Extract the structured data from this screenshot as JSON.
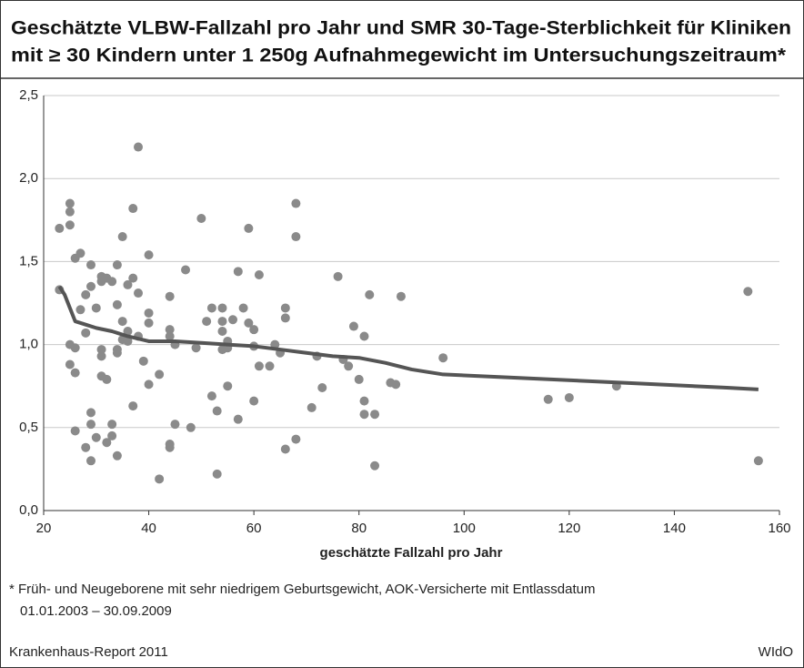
{
  "chart_data": {
    "type": "scatter",
    "title": [
      "Geschätzte VLBW-Fallzahl pro Jahr und SMR 30-Tage-Sterblichkeit für Kliniken",
      "mit ≥ 30 Kindern unter 1 250g Aufnahmegewicht im Untersuchungszeitraum*"
    ],
    "x_label": "geschätzte Fallzahl pro Jahr",
    "footnote": [
      "* Früh- und Neugeborene mit sehr niedrigem Geburtsgewicht, AOK-Versicherte mit Entlassdatum",
      "01.01.2003 – 30.09.2009"
    ],
    "source": "Krankenhaus-Report 2011",
    "publisher": "WIdO",
    "xlim": [
      20,
      160
    ],
    "xticks": [
      20,
      40,
      60,
      80,
      100,
      120,
      140,
      160
    ],
    "ylim": [
      0,
      2.5
    ],
    "yticks": [
      {
        "value": 0,
        "label": "0,0"
      },
      {
        "value": 0.5,
        "label": "0,5"
      },
      {
        "value": 1,
        "label": "1,0"
      },
      {
        "value": 1.5,
        "label": "1,5"
      },
      {
        "value": 2,
        "label": "2,0"
      },
      {
        "value": 2.5,
        "label": "2,5"
      }
    ],
    "grid": true,
    "color": "#8a8a8a",
    "trend_color": "#555555",
    "x": [
      23,
      23,
      25,
      25,
      25,
      26,
      27,
      25,
      26,
      25,
      26,
      26,
      27,
      28,
      28,
      28,
      29,
      29,
      29,
      29,
      29,
      30,
      30,
      31,
      31,
      31,
      31,
      31,
      32,
      32,
      32,
      33,
      33,
      33,
      34,
      34,
      34,
      34,
      34,
      35,
      35,
      35,
      36,
      36,
      36,
      37,
      37,
      37,
      38,
      38,
      38,
      39,
      40,
      40,
      40,
      40,
      42,
      42,
      44,
      44,
      44,
      44,
      44,
      45,
      45,
      47,
      48,
      49,
      50,
      51,
      52,
      52,
      53,
      53,
      54,
      54,
      54,
      54,
      55,
      55,
      55,
      56,
      57,
      57,
      58,
      59,
      59,
      60,
      60,
      60,
      61,
      61,
      63,
      64,
      65,
      66,
      66,
      66,
      68,
      68,
      68,
      71,
      72,
      73,
      76,
      77,
      78,
      79,
      80,
      81,
      81,
      81,
      82,
      83,
      83,
      86,
      87,
      88,
      96,
      116,
      120,
      129,
      154,
      156
    ],
    "values": [
      1.7,
      1.33,
      1.85,
      1.8,
      1.72,
      1.52,
      1.55,
      1.0,
      0.98,
      0.88,
      0.83,
      0.48,
      1.21,
      1.3,
      1.07,
      0.38,
      1.48,
      1.35,
      0.59,
      0.52,
      0.3,
      1.22,
      0.44,
      1.41,
      1.38,
      0.97,
      0.93,
      0.81,
      1.4,
      0.79,
      0.41,
      1.38,
      0.52,
      0.45,
      1.48,
      1.24,
      0.97,
      0.95,
      0.33,
      1.65,
      1.14,
      1.03,
      1.36,
      1.08,
      1.02,
      1.82,
      1.4,
      0.63,
      2.19,
      1.31,
      1.05,
      0.9,
      1.54,
      1.19,
      0.76,
      1.13,
      0.82,
      0.19,
      1.29,
      1.09,
      1.05,
      0.4,
      0.38,
      1.0,
      0.52,
      1.45,
      0.5,
      0.98,
      1.76,
      1.14,
      1.22,
      0.69,
      0.6,
      0.22,
      1.22,
      1.14,
      1.08,
      0.97,
      1.02,
      0.98,
      0.75,
      1.15,
      1.44,
      0.55,
      1.22,
      1.7,
      1.13,
      1.09,
      0.99,
      0.66,
      1.42,
      0.87,
      0.87,
      1.0,
      0.95,
      1.22,
      1.16,
      0.37,
      1.85,
      1.65,
      0.43,
      0.62,
      0.93,
      0.74,
      1.41,
      0.91,
      0.87,
      1.11,
      0.79,
      1.05,
      0.66,
      0.58,
      1.3,
      0.58,
      0.27,
      0.77,
      0.76,
      1.29,
      0.92,
      0.67,
      0.68,
      0.75,
      1.32,
      0.3
    ],
    "trend": {
      "x": [
        23,
        24,
        25,
        26,
        28,
        30,
        33,
        36,
        40,
        45,
        50,
        55,
        60,
        65,
        70,
        75,
        80,
        85,
        90,
        96,
        110,
        130,
        150,
        156
      ],
      "values": [
        1.35,
        1.3,
        1.22,
        1.14,
        1.12,
        1.1,
        1.08,
        1.05,
        1.02,
        1.02,
        1.01,
        1.0,
        0.99,
        0.97,
        0.95,
        0.93,
        0.92,
        0.89,
        0.85,
        0.82,
        0.8,
        0.77,
        0.74,
        0.73
      ]
    }
  }
}
